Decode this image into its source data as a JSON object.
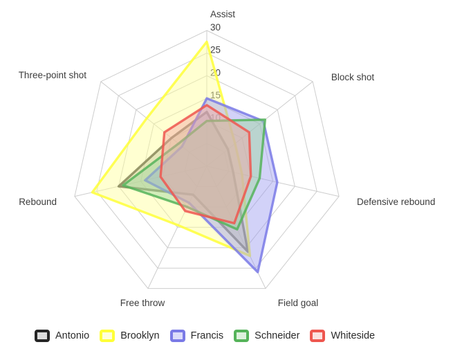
{
  "chart_data": {
    "type": "radar",
    "axis_max": 30,
    "ring_step": 5,
    "grid": true,
    "legend_position": "bottom",
    "tick_labels": [
      "30",
      "25",
      "20",
      "15",
      "10"
    ],
    "tick_values": [
      30,
      25,
      20,
      15,
      10
    ],
    "categories": [
      "Assist",
      "Block shot",
      "Defensive rebound",
      "Field goal",
      "Free throw",
      "Rebound",
      "Three-point shot"
    ],
    "series": [
      {
        "name": "Antonio",
        "stroke": "#262626",
        "fill": "#9a9a9a",
        "values": [
          12,
          6,
          6,
          21,
          7,
          20,
          10
        ]
      },
      {
        "name": "Brooklyn",
        "stroke": "#ffff38",
        "fill": "#ffff99",
        "values": [
          27.5,
          8,
          8,
          22,
          14.5,
          26,
          17
        ]
      },
      {
        "name": "Francis",
        "stroke": "#7a7ae6",
        "fill": "#9c9cf0",
        "values": [
          15,
          16,
          16,
          26,
          9,
          14,
          7
        ]
      },
      {
        "name": "Schneider",
        "stroke": "#55b35a",
        "fill": "#9ed89e",
        "values": [
          10,
          16.5,
          12,
          15.5,
          10,
          19,
          8
        ]
      },
      {
        "name": "Whiteside",
        "stroke": "#ee564f",
        "fill": "#f3a6a2",
        "values": [
          13.5,
          12,
          10,
          14,
          11,
          10.5,
          12
        ]
      }
    ],
    "colors": {
      "grid_line": "#cdcdcd",
      "tick_text": "#404040",
      "category_text": "#3c3c3c"
    }
  }
}
